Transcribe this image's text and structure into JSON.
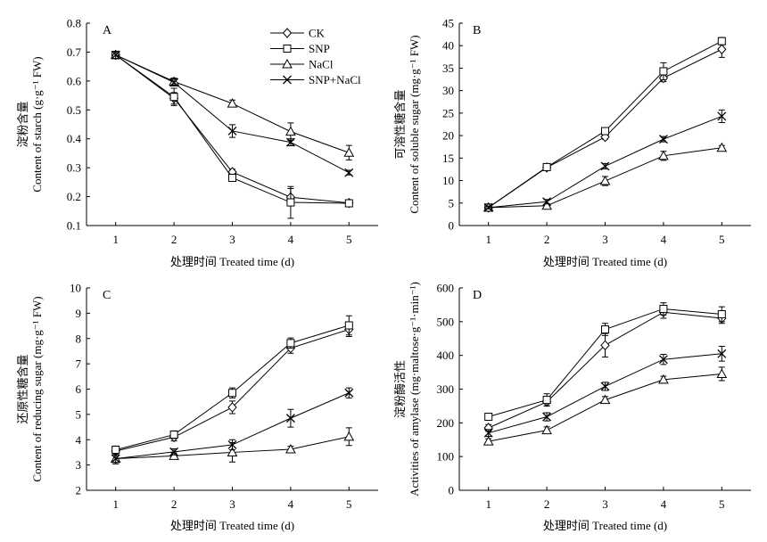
{
  "chart_data": [
    {
      "type": "line",
      "panel_label": "A",
      "xlabel": "处理时间 Treated time (d)",
      "ylabel_cn": "淀粉含量",
      "ylabel_en": "Content of starch (g·g⁻¹ FW)",
      "x": [
        1,
        2,
        3,
        4,
        5
      ],
      "xlim": [
        0.5,
        5.5
      ],
      "ylim": [
        0.1,
        0.8
      ],
      "yticks": [
        0.1,
        0.2,
        0.3,
        0.4,
        0.5,
        0.6,
        0.7,
        0.8
      ],
      "ytick_labels": [
        "0.1",
        "0.2",
        "0.3",
        "0.4",
        "0.5",
        "0.6",
        "0.7",
        "0.8"
      ],
      "legend_position": "top-right",
      "series": [
        {
          "name": "CK",
          "marker": "diamond",
          "values": [
            0.69,
            0.54,
            0.285,
            0.198,
            0.178
          ],
          "errors": [
            0.012,
            0.02,
            0.01,
            0.03,
            0.01
          ]
        },
        {
          "name": "SNP",
          "marker": "square",
          "values": [
            0.69,
            0.545,
            0.265,
            0.18,
            0.177
          ],
          "errors": [
            0.012,
            0.03,
            0.01,
            0.055,
            0.01
          ]
        },
        {
          "name": "NaCl",
          "marker": "triangle",
          "values": [
            0.69,
            0.598,
            0.522,
            0.425,
            0.352
          ],
          "errors": [
            0.012,
            0.012,
            0.012,
            0.03,
            0.025
          ]
        },
        {
          "name": "SNP+NaCl",
          "marker": "cross",
          "values": [
            0.69,
            0.595,
            0.427,
            0.388,
            0.283
          ],
          "errors": [
            0.012,
            0.012,
            0.022,
            0.012,
            0.008
          ]
        }
      ]
    },
    {
      "type": "line",
      "panel_label": "B",
      "xlabel": "处理时间 Treated time (d)",
      "ylabel_cn": "可溶性糖含量",
      "ylabel_en": "Content of soluble sugar (mg·g⁻¹ FW)",
      "x": [
        1,
        2,
        3,
        4,
        5
      ],
      "xlim": [
        0.5,
        5.5
      ],
      "ylim": [
        0,
        45
      ],
      "yticks": [
        0,
        5,
        10,
        15,
        20,
        25,
        30,
        35,
        40,
        45
      ],
      "ytick_labels": [
        "0",
        "5",
        "10",
        "15",
        "20",
        "25",
        "30",
        "35",
        "40",
        "45"
      ],
      "series": [
        {
          "name": "CK",
          "marker": "diamond",
          "values": [
            4.0,
            12.9,
            19.7,
            32.8,
            39.2
          ],
          "errors": [
            0.3,
            0.4,
            0.5,
            0.8,
            1.8
          ]
        },
        {
          "name": "SNP",
          "marker": "square",
          "values": [
            4.0,
            13.0,
            21.0,
            34.3,
            41.0
          ],
          "errors": [
            0.3,
            0.4,
            0.6,
            1.9,
            0.8
          ]
        },
        {
          "name": "NaCl",
          "marker": "triangle",
          "values": [
            4.0,
            4.4,
            9.9,
            15.5,
            17.3
          ],
          "errors": [
            0.3,
            0.4,
            1.0,
            1.0,
            0.5
          ]
        },
        {
          "name": "SNP+NaCl",
          "marker": "cross",
          "values": [
            4.0,
            5.3,
            13.2,
            19.2,
            24.3
          ],
          "errors": [
            0.3,
            0.5,
            0.6,
            0.6,
            1.4
          ]
        }
      ]
    },
    {
      "type": "line",
      "panel_label": "C",
      "xlabel": "处理时间 Treated time (d)",
      "ylabel_cn": "还原性糖含量",
      "ylabel_en": "Content of reducing sugar (mg·g⁻¹ FW)",
      "x": [
        1,
        2,
        3,
        4,
        5
      ],
      "xlim": [
        0.5,
        5.5
      ],
      "ylim": [
        2,
        10
      ],
      "yticks": [
        2,
        3,
        4,
        5,
        6,
        7,
        8,
        9,
        10
      ],
      "ytick_labels": [
        "2",
        "3",
        "4",
        "5",
        "6",
        "7",
        "8",
        "9",
        "10"
      ],
      "series": [
        {
          "name": "CK",
          "marker": "diamond",
          "values": [
            3.55,
            4.1,
            5.28,
            7.62,
            8.36
          ],
          "errors": [
            0.15,
            0.15,
            0.25,
            0.2,
            0.28
          ]
        },
        {
          "name": "SNP",
          "marker": "square",
          "values": [
            3.6,
            4.2,
            5.85,
            7.82,
            8.52
          ],
          "errors": [
            0.15,
            0.15,
            0.2,
            0.2,
            0.38
          ]
        },
        {
          "name": "NaCl",
          "marker": "triangle",
          "values": [
            3.25,
            3.36,
            3.5,
            3.62,
            4.12
          ],
          "errors": [
            0.2,
            0.12,
            0.38,
            0.12,
            0.35
          ]
        },
        {
          "name": "SNP+NaCl",
          "marker": "cross",
          "values": [
            3.25,
            3.52,
            3.8,
            4.85,
            5.85
          ],
          "errors": [
            0.2,
            0.12,
            0.2,
            0.35,
            0.2
          ]
        }
      ]
    },
    {
      "type": "line",
      "panel_label": "D",
      "xlabel": "处理时间 Treated time (d)",
      "ylabel_cn": "淀粉酶活性",
      "ylabel_en": "Activities of amylase (mg·maltose·g⁻¹·min⁻¹)",
      "x": [
        1,
        2,
        3,
        4,
        5
      ],
      "xlim": [
        0.5,
        5.5
      ],
      "ylim": [
        0,
        600
      ],
      "yticks": [
        0,
        100,
        200,
        300,
        400,
        500,
        600
      ],
      "ytick_labels": [
        "0",
        "100",
        "200",
        "300",
        "400",
        "500",
        "600"
      ],
      "series": [
        {
          "name": "CK",
          "marker": "diamond",
          "values": [
            185,
            262,
            430,
            528,
            510
          ],
          "errors": [
            10,
            12,
            35,
            18,
            15
          ]
        },
        {
          "name": "SNP",
          "marker": "square",
          "values": [
            218,
            268,
            477,
            538,
            522
          ],
          "errors": [
            10,
            18,
            18,
            18,
            22
          ]
        },
        {
          "name": "NaCl",
          "marker": "triangle",
          "values": [
            145,
            178,
            268,
            328,
            345
          ],
          "errors": [
            8,
            10,
            10,
            10,
            20
          ]
        },
        {
          "name": "SNP+NaCl",
          "marker": "cross",
          "values": [
            170,
            218,
            308,
            388,
            405
          ],
          "errors": [
            10,
            12,
            12,
            15,
            22
          ]
        }
      ]
    }
  ]
}
